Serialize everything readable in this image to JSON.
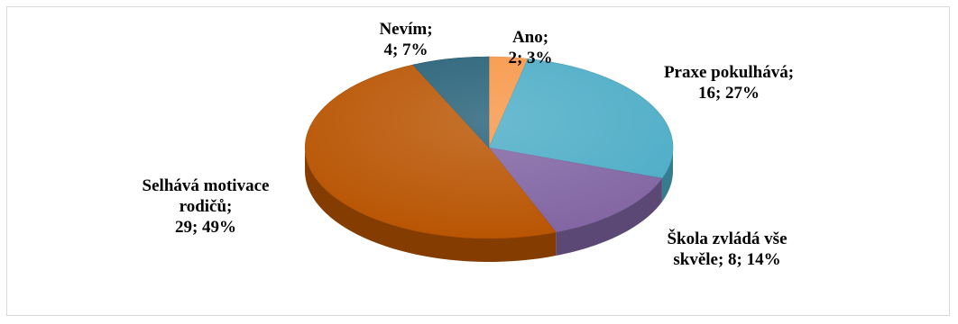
{
  "chart_data": {
    "type": "pie",
    "style": "3d",
    "slices": [
      {
        "label_lines": [
          "Ano;",
          "2; 3%"
        ],
        "value": 2,
        "percent": 3,
        "color": "#f79646"
      },
      {
        "label_lines": [
          "Praxe pokulhává;",
          "16; 27%"
        ],
        "value": 16,
        "percent": 27,
        "color": "#4bacc6"
      },
      {
        "label_lines": [
          "Škola zvládá vše",
          "skvěle; 8; 14%"
        ],
        "value": 8,
        "percent": 14,
        "color": "#8064a2"
      },
      {
        "label_lines": [
          "Selhává motivace",
          "rodičů;",
          "29; 49%"
        ],
        "value": 29,
        "percent": 49,
        "color": "#b85300"
      },
      {
        "label_lines": [
          "Nevím;",
          "4; 7%"
        ],
        "value": 4,
        "percent": 7,
        "color": "#245f76"
      }
    ]
  }
}
